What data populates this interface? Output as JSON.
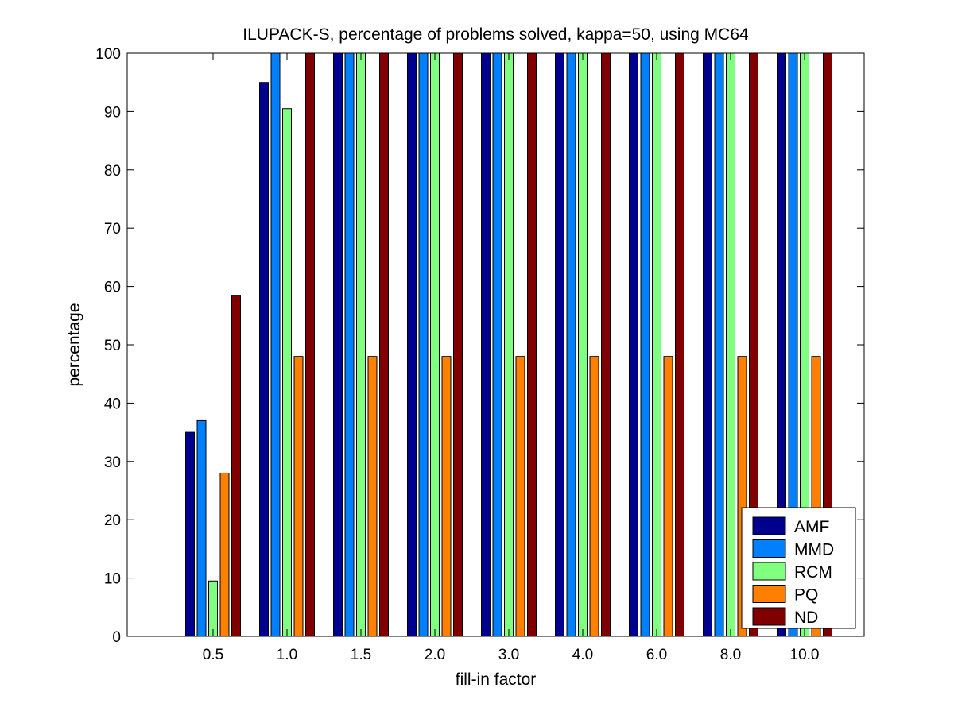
{
  "chart_data": {
    "type": "bar",
    "title": "ILUPACK-S, percentage of problems solved, kappa=50, using MC64",
    "xlabel": "fill-in factor",
    "ylabel": "percentage",
    "ylim": [
      0,
      100
    ],
    "yticks": [
      0,
      10,
      20,
      30,
      40,
      50,
      60,
      70,
      80,
      90,
      100
    ],
    "categories": [
      "0.5",
      "1.0",
      "1.5",
      "2.0",
      "3.0",
      "4.0",
      "6.0",
      "8.0",
      "10.0"
    ],
    "series": [
      {
        "name": "AMF",
        "color": "#00008f",
        "values": [
          35,
          95,
          100,
          100,
          100,
          100,
          100,
          100,
          100
        ]
      },
      {
        "name": "MMD",
        "color": "#0080ff",
        "values": [
          37,
          100,
          100,
          100,
          100,
          100,
          100,
          100,
          100
        ]
      },
      {
        "name": "RCM",
        "color": "#80ff80",
        "values": [
          9.5,
          90.5,
          100,
          100,
          100,
          100,
          100,
          100,
          100
        ]
      },
      {
        "name": "PQ",
        "color": "#ff8000",
        "values": [
          28,
          48,
          48,
          48,
          48,
          48,
          48,
          48,
          48
        ]
      },
      {
        "name": "ND",
        "color": "#800000",
        "values": [
          58.5,
          100,
          100,
          100,
          100,
          100,
          100,
          100,
          100
        ]
      }
    ],
    "grid": false,
    "legend_position": "bottom-right"
  }
}
